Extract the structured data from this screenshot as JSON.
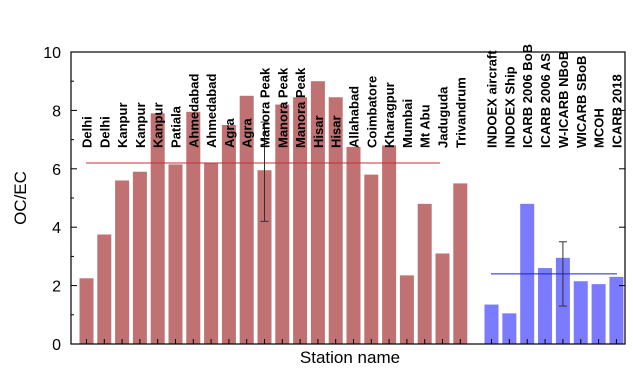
{
  "chart_data": {
    "type": "bar",
    "xlabel": "Station name",
    "ylabel": "OC/EC",
    "ylim": [
      0,
      10
    ],
    "yticks": [
      0,
      2,
      4,
      6,
      8,
      10
    ],
    "grid": false,
    "series": [
      {
        "color": "#c07272",
        "categories": [
          "Delhi",
          "Delhi",
          "Kanpur",
          "Kanpur",
          "Kanpur",
          "Patiala",
          "Ahmedabad",
          "Ahmedabad",
          "Agra",
          "Agra",
          "Manora Peak",
          "Manora Peak",
          "Manora Peak",
          "Hisar",
          "Hisar",
          "Allahabad",
          "Coimbatore",
          "Kharagpur",
          "Mumbai",
          "Mt Abu",
          "Jaduguda",
          "Trivandrum"
        ],
        "values": [
          2.25,
          3.75,
          5.6,
          5.9,
          7.9,
          6.15,
          7.95,
          6.2,
          7.5,
          8.5,
          5.95,
          8.2,
          8.45,
          9.0,
          8.45,
          6.75,
          5.8,
          6.8,
          2.35,
          4.8,
          3.1,
          5.5
        ],
        "mean": 6.2,
        "errorbar": {
          "category_index": 10,
          "low": 4.2,
          "high": 7.6
        }
      },
      {
        "color": "#7b7bff",
        "categories": [
          "INDOEX aircraft",
          "INDOEX Ship",
          "ICARB 2006 BoB",
          "ICARB 2006 AS",
          "W-ICARB NBoB",
          "WICARB SBoB",
          "MCOH",
          "ICARB 2018"
        ],
        "values": [
          1.35,
          1.05,
          4.8,
          2.6,
          2.95,
          2.15,
          2.05,
          2.3
        ],
        "mean": 2.4,
        "errorbar": {
          "category_index": 4,
          "low": 1.3,
          "high": 3.5
        }
      }
    ]
  }
}
